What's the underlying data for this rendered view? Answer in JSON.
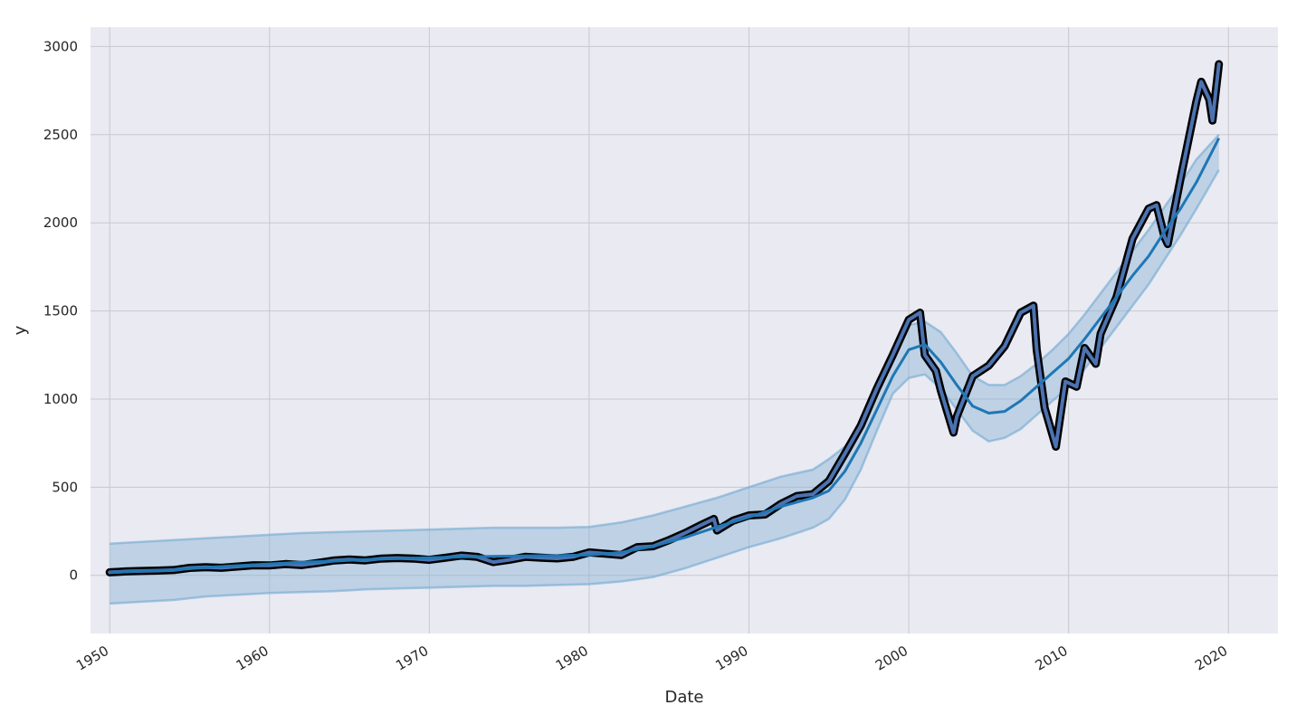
{
  "chart_data": {
    "type": "line",
    "title": "",
    "xlabel": "Date",
    "ylabel": "y",
    "xlim": [
      1948.8,
      2023.1
    ],
    "ylim": [
      -330,
      3110
    ],
    "x_ticks": [
      1950,
      1960,
      1970,
      1980,
      1990,
      2000,
      2010,
      2020
    ],
    "x_tick_labels": [
      "1950",
      "1960",
      "1970",
      "1980",
      "1990",
      "2000",
      "2010",
      "2020"
    ],
    "y_ticks": [
      0,
      500,
      1000,
      1500,
      2000,
      2500,
      3000
    ],
    "y_tick_labels": [
      "0",
      "500",
      "1000",
      "1500",
      "2000",
      "2500",
      "3000"
    ],
    "grid": true,
    "colors": {
      "background": "#eaeaf2",
      "grid": "#c8c8cc",
      "forecast": "#1f77b4",
      "band": "#8ab4d4",
      "band_edge": "#6fa8d0",
      "observed_fill": "#4c72b0",
      "observed_edge": "#000000"
    },
    "series": [
      {
        "type": "band",
        "x": [
          1950,
          1952,
          1954,
          1956,
          1958,
          1960,
          1962,
          1964,
          1966,
          1968,
          1970,
          1972,
          1974,
          1976,
          1978,
          1980,
          1982,
          1984,
          1986,
          1988,
          1990,
          1992,
          1994,
          1995,
          1996,
          1997,
          1998,
          1999,
          2000,
          2001,
          2002,
          2003,
          2004,
          2005,
          2006,
          2007,
          2008,
          2009,
          2010,
          2011,
          2012,
          2013,
          2014,
          2015,
          2016,
          2017,
          2018,
          2019.4
        ],
        "lower": [
          -160,
          -150,
          -140,
          -120,
          -110,
          -100,
          -95,
          -90,
          -80,
          -75,
          -70,
          -65,
          -60,
          -60,
          -55,
          -50,
          -35,
          -10,
          40,
          100,
          160,
          210,
          270,
          320,
          430,
          600,
          820,
          1030,
          1120,
          1140,
          1060,
          940,
          820,
          760,
          780,
          830,
          910,
          990,
          1070,
          1170,
          1290,
          1410,
          1530,
          1650,
          1790,
          1930,
          2080,
          2300
        ],
        "upper": [
          180,
          190,
          200,
          210,
          220,
          230,
          240,
          245,
          250,
          255,
          260,
          265,
          270,
          270,
          270,
          275,
          300,
          340,
          390,
          440,
          500,
          560,
          600,
          660,
          730,
          860,
          1050,
          1270,
          1420,
          1440,
          1380,
          1260,
          1130,
          1080,
          1080,
          1130,
          1200,
          1280,
          1370,
          1480,
          1600,
          1720,
          1840,
          1960,
          2090,
          2220,
          2360,
          2500
        ]
      },
      {
        "type": "line",
        "name": "",
        "x": [
          1950,
          1952,
          1954,
          1956,
          1958,
          1960,
          1962,
          1964,
          1966,
          1968,
          1970,
          1972,
          1974,
          1976,
          1978,
          1980,
          1982,
          1984,
          1986,
          1988,
          1990,
          1992,
          1994,
          1995,
          1996,
          1997,
          1998,
          1999,
          2000,
          2001,
          2002,
          2003,
          2004,
          2005,
          2006,
          2007,
          2008,
          2009,
          2010,
          2011,
          2012,
          2013,
          2014,
          2015,
          2016,
          2017,
          2018,
          2019.4
        ],
        "values": [
          15,
          25,
          30,
          45,
          55,
          65,
          75,
          80,
          90,
          95,
          100,
          105,
          108,
          110,
          112,
          115,
          130,
          165,
          215,
          275,
          330,
          390,
          440,
          480,
          590,
          750,
          940,
          1130,
          1280,
          1310,
          1210,
          1080,
          960,
          920,
          930,
          990,
          1070,
          1150,
          1230,
          1340,
          1460,
          1580,
          1700,
          1810,
          1950,
          2080,
          2230,
          2480
        ]
      },
      {
        "type": "observed",
        "name": "",
        "x": [
          1950,
          1951,
          1952,
          1953,
          1954,
          1955,
          1956,
          1957,
          1958,
          1959,
          1960,
          1961,
          1962,
          1963,
          1964,
          1965,
          1966,
          1967,
          1968,
          1969,
          1970,
          1971,
          1972,
          1973,
          1974,
          1975,
          1976,
          1977,
          1978,
          1979,
          1980,
          1981,
          1982,
          1983,
          1984,
          1985,
          1986,
          1987,
          1987.8,
          1988,
          1989,
          1990,
          1991,
          1992,
          1993,
          1994,
          1995,
          1996,
          1997,
          1998,
          1999,
          2000,
          2000.7,
          2001,
          2001.7,
          2002,
          2002.8,
          2003,
          2004,
          2005,
          2006,
          2007,
          2007.8,
          2008,
          2008.5,
          2009.2,
          2009.8,
          2010.5,
          2011,
          2011.7,
          2012,
          2013,
          2014,
          2015,
          2015.5,
          2016,
          2016.2,
          2017,
          2018,
          2018.3,
          2018.8,
          2019,
          2019.4
        ],
        "values": [
          17,
          22,
          25,
          27,
          30,
          42,
          46,
          43,
          50,
          57,
          56,
          64,
          58,
          70,
          84,
          90,
          85,
          95,
          98,
          95,
          88,
          100,
          112,
          105,
          75,
          88,
          105,
          100,
          96,
          105,
          130,
          123,
          115,
          160,
          165,
          200,
          240,
          285,
          320,
          255,
          310,
          340,
          345,
          405,
          450,
          460,
          535,
          690,
          850,
          1060,
          1250,
          1450,
          1490,
          1250,
          1160,
          1050,
          810,
          900,
          1130,
          1190,
          1300,
          1490,
          1530,
          1280,
          950,
          730,
          1100,
          1070,
          1290,
          1200,
          1370,
          1580,
          1910,
          2080,
          2100,
          1920,
          1880,
          2250,
          2690,
          2800,
          2700,
          2580,
          2900
        ]
      }
    ]
  }
}
